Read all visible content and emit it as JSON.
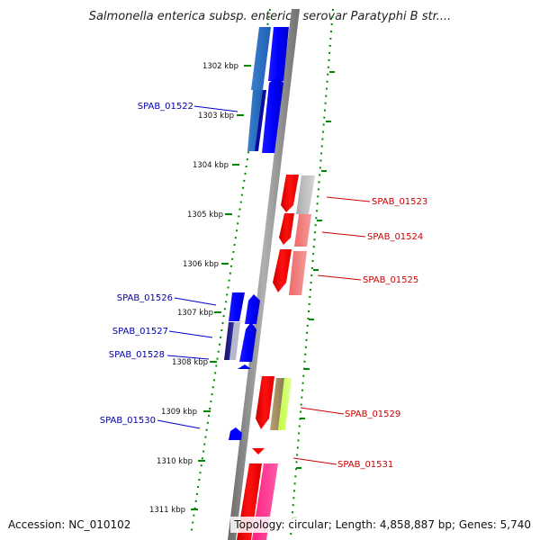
{
  "title": "Salmonella enterica subsp. enterica serovar Paratyphi B str....",
  "accession": "Accession: NC_010102",
  "topology": "Topology: circular; Length: 4,858,887 bp; Genes: 5,740",
  "colors": {
    "forward_gene": "#0000ff",
    "reverse_gene": "#ff0000",
    "forward_label": "#0000aa",
    "reverse_label": "#cc0000",
    "tick": "#008800",
    "backbone": "#888888"
  },
  "ticks": [
    {
      "label": "1302 kbp"
    },
    {
      "label": "1303 kbp"
    },
    {
      "label": "1304 kbp"
    },
    {
      "label": "1305 kbp"
    },
    {
      "label": "1306 kbp"
    },
    {
      "label": "1307 kbp"
    },
    {
      "label": "1308 kbp"
    },
    {
      "label": "1309 kbp"
    },
    {
      "label": "1310 kbp"
    },
    {
      "label": "1311 kbp"
    }
  ],
  "gene_labels": {
    "forward": [
      "SPAB_01522",
      "SPAB_01526",
      "SPAB_01527",
      "SPAB_01528",
      "SPAB_01530"
    ],
    "reverse": [
      "SPAB_01523",
      "SPAB_01524",
      "SPAB_01525",
      "SPAB_01529",
      "SPAB_01531"
    ]
  }
}
